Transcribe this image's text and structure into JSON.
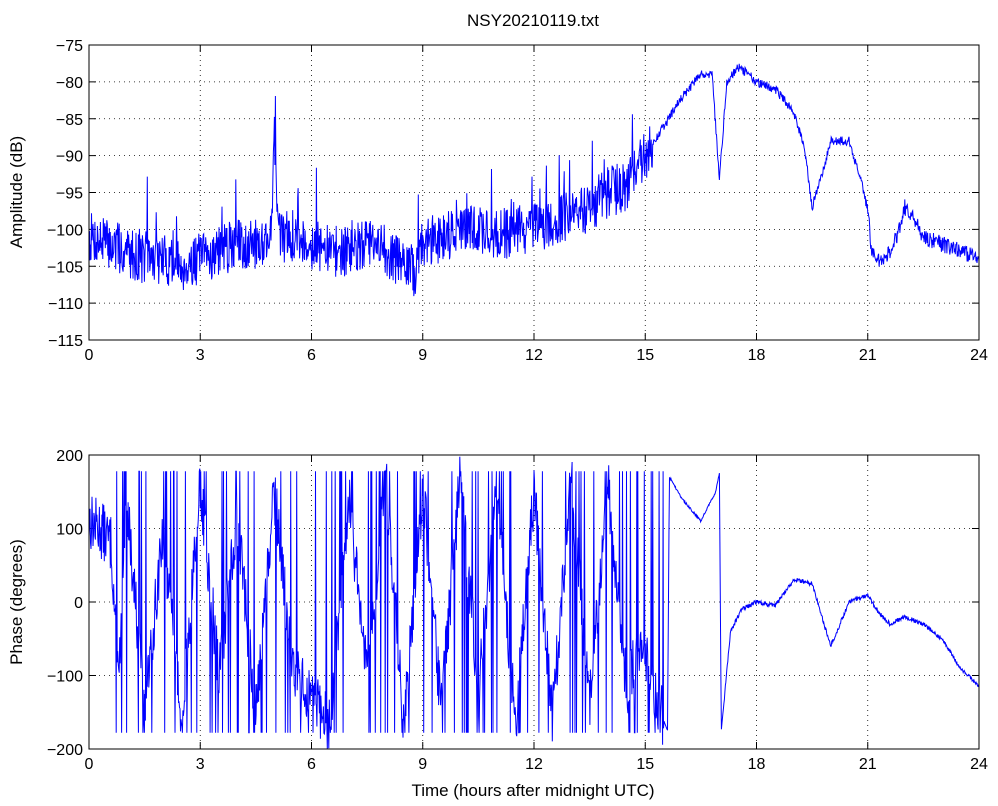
{
  "chart_data": [
    {
      "type": "line",
      "title": "NSY20210119.txt",
      "xlabel": "",
      "ylabel": "Amplitude (dB)",
      "xlim": [
        0,
        24
      ],
      "ylim": [
        -115,
        -75
      ],
      "xticks": [
        0,
        3,
        6,
        9,
        12,
        15,
        18,
        21,
        24
      ],
      "yticks": [
        -75,
        -80,
        -85,
        -90,
        -95,
        -100,
        -105,
        -110,
        -115
      ],
      "grid": true,
      "color": "#0000ff",
      "series": [
        {
          "x": [
            0,
            0.5,
            1,
            1.5,
            2,
            2.5,
            3,
            3.5,
            4,
            4.5,
            4.9,
            5.0,
            5.1,
            5.5,
            6,
            6.5,
            7,
            7.5,
            8,
            8.5,
            8.8,
            9,
            9.5,
            10,
            10.5,
            11,
            11.5,
            12,
            12.5,
            13,
            13.5,
            14,
            14.5,
            15,
            15.5,
            16,
            16.5,
            16.8,
            17.0,
            17.2,
            17.5,
            17.8,
            18,
            18.5,
            19,
            19.3,
            19.5,
            19.8,
            20,
            20.5,
            21,
            21.1,
            21.3,
            21.5,
            21.8,
            22,
            22.3,
            22.5,
            23,
            23.5,
            24
          ],
          "y": [
            -101,
            -102,
            -103,
            -104,
            -104,
            -105,
            -104,
            -103,
            -102,
            -102,
            -101,
            -87,
            -101,
            -101,
            -102,
            -103,
            -103,
            -102,
            -103,
            -105,
            -106,
            -102,
            -101,
            -100,
            -100,
            -101,
            -100,
            -100,
            -99,
            -98,
            -97,
            -95,
            -94,
            -90,
            -86,
            -82,
            -79,
            -79,
            -93,
            -80,
            -78,
            -79,
            -80,
            -81,
            -84,
            -89,
            -97,
            -92,
            -88,
            -88,
            -97,
            -103,
            -104,
            -104,
            -101,
            -97,
            -99,
            -101,
            -102,
            -103,
            -104
          ]
        }
      ]
    },
    {
      "type": "line",
      "title": "",
      "xlabel": "Time (hours after midnight UTC)",
      "ylabel": "Phase (degrees)",
      "xlim": [
        0,
        24
      ],
      "ylim": [
        -200,
        200
      ],
      "xticks": [
        0,
        3,
        6,
        9,
        12,
        15,
        18,
        21,
        24
      ],
      "yticks": [
        200,
        100,
        0,
        -100,
        -200
      ],
      "grid": true,
      "color": "#0000ff",
      "series": [
        {
          "x": [
            0,
            0.3,
            0.6,
            0.8,
            1.0,
            1.5,
            2,
            2.5,
            3,
            3.5,
            4,
            4.5,
            5,
            5.5,
            6,
            6.5,
            7,
            7.5,
            8,
            8.5,
            9,
            9.5,
            10,
            10.5,
            11,
            11.5,
            12,
            12.5,
            13,
            13.5,
            14,
            14.5,
            14.9,
            15.2,
            15.6,
            15.65,
            16,
            16.5,
            16.9,
            17.0,
            17.05,
            17.3,
            17.6,
            18,
            18.5,
            19,
            19.5,
            20,
            20.5,
            21,
            21.3,
            21.6,
            22,
            22.5,
            23,
            23.5,
            24
          ],
          "y": [
            110,
            100,
            80,
            -120,
            150,
            -150,
            100,
            -170,
            160,
            -100,
            120,
            -160,
            150,
            -90,
            -130,
            -170,
            140,
            -100,
            170,
            -170,
            160,
            -150,
            170,
            -120,
            160,
            -170,
            150,
            -160,
            170,
            -140,
            160,
            -120,
            -50,
            -120,
            -175,
            170,
            140,
            110,
            150,
            175,
            -175,
            -40,
            -10,
            0,
            -5,
            30,
            25,
            -60,
            0,
            10,
            -15,
            -30,
            -20,
            -30,
            -50,
            -90,
            -115
          ]
        }
      ]
    }
  ]
}
